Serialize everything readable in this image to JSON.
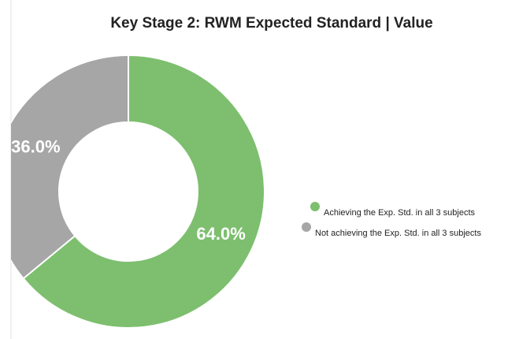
{
  "chart_data": {
    "type": "pie",
    "title": "Key Stage 2: RWM Expected Standard | Value",
    "categories": [
      "Achieving the Exp. Std. in all 3 subjects",
      "Not achieving the Exp. Std. in all 3 subjects"
    ],
    "values": [
      64,
      36
    ],
    "value_labels": [
      "64.0%",
      "36.0%"
    ],
    "colors": [
      "#7dbf6e",
      "#a6a6a6"
    ],
    "legend": "right"
  }
}
